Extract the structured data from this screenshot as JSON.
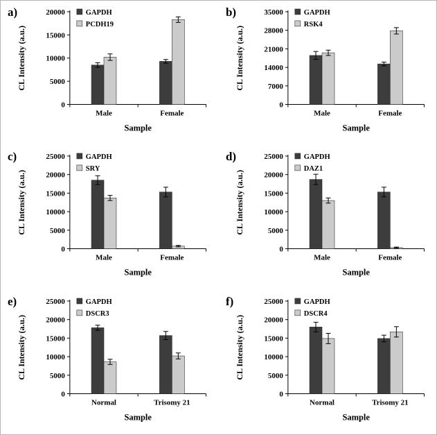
{
  "figure": {
    "background": "#ffffff",
    "border_color": "#b5b5b5",
    "dark_bar_color": "#3d3d3d",
    "light_bar_color": "#cbcbcb",
    "text_color": "#000000"
  },
  "chart_data": [
    {
      "type": "bar",
      "panel": "a)",
      "categories": [
        "Male",
        "Female"
      ],
      "series": [
        {
          "name": "GAPDH",
          "values": [
            8500,
            9300
          ],
          "errors": [
            500,
            400
          ],
          "color": "#3d3d3d"
        },
        {
          "name": "PCDH19",
          "values": [
            10200,
            18300
          ],
          "errors": [
            700,
            600
          ],
          "color": "#cbcbcb"
        }
      ],
      "xlabel": "Sample",
      "ylabel": "CL Intensity (a.u.)",
      "ylim": [
        0,
        20000
      ],
      "yticks": [
        0,
        5000,
        10000,
        15000,
        20000
      ],
      "legend_position": "top-left-inside",
      "grid": false
    },
    {
      "type": "bar",
      "panel": "b)",
      "categories": [
        "Male",
        "Female"
      ],
      "series": [
        {
          "name": "GAPDH",
          "values": [
            18500,
            15300
          ],
          "errors": [
            1500,
            700
          ],
          "color": "#3d3d3d"
        },
        {
          "name": "RSK4",
          "values": [
            19500,
            27800
          ],
          "errors": [
            1000,
            1200
          ],
          "color": "#cbcbcb"
        }
      ],
      "xlabel": "Sample",
      "ylabel": "CL Intensity (a.u.)",
      "ylim": [
        0,
        35000
      ],
      "yticks": [
        0,
        7000,
        14000,
        21000,
        28000,
        35000
      ],
      "legend_position": "top-left-inside",
      "grid": false
    },
    {
      "type": "bar",
      "panel": "c)",
      "categories": [
        "Male",
        "Female"
      ],
      "series": [
        {
          "name": "GAPDH",
          "values": [
            18500,
            15300
          ],
          "errors": [
            1200,
            1300
          ],
          "color": "#3d3d3d"
        },
        {
          "name": "SRY",
          "values": [
            13700,
            700
          ],
          "errors": [
            700,
            200
          ],
          "color": "#cbcbcb"
        }
      ],
      "xlabel": "Sample",
      "ylabel": "CL Intensity (a.u.)",
      "ylim": [
        0,
        25000
      ],
      "yticks": [
        0,
        5000,
        10000,
        15000,
        20000,
        25000
      ],
      "legend_position": "top-left-inside",
      "grid": false
    },
    {
      "type": "bar",
      "panel": "d)",
      "categories": [
        "Male",
        "Female"
      ],
      "series": [
        {
          "name": "GAPDH",
          "values": [
            18700,
            15300
          ],
          "errors": [
            1400,
            1300
          ],
          "color": "#3d3d3d"
        },
        {
          "name": "DAZ1",
          "values": [
            13000,
            300
          ],
          "errors": [
            700,
            150
          ],
          "color": "#cbcbcb"
        }
      ],
      "xlabel": "Sample",
      "ylabel": "CL Intensity (a.u.)",
      "ylim": [
        0,
        25000
      ],
      "yticks": [
        0,
        5000,
        10000,
        15000,
        20000,
        25000
      ],
      "legend_position": "top-left-inside",
      "grid": false
    },
    {
      "type": "bar",
      "panel": "e)",
      "categories": [
        "Normal",
        "Trisomy 21"
      ],
      "series": [
        {
          "name": "GAPDH",
          "values": [
            17800,
            15700
          ],
          "errors": [
            700,
            1100
          ],
          "color": "#3d3d3d"
        },
        {
          "name": "DSCR3",
          "values": [
            8600,
            10200
          ],
          "errors": [
            700,
            800
          ],
          "color": "#cbcbcb"
        }
      ],
      "xlabel": "Sample",
      "ylabel": "CL Intensity (a.u.)",
      "ylim": [
        0,
        25000
      ],
      "yticks": [
        0,
        5000,
        10000,
        15000,
        20000,
        25000
      ],
      "legend_position": "top-left-inside",
      "grid": false
    },
    {
      "type": "bar",
      "panel": "f)",
      "categories": [
        "Normal",
        "Trisomy 21"
      ],
      "series": [
        {
          "name": "GAPDH",
          "values": [
            18000,
            14900
          ],
          "errors": [
            1300,
            900
          ],
          "color": "#3d3d3d"
        },
        {
          "name": "DSCR4",
          "values": [
            14900,
            16700
          ],
          "errors": [
            1400,
            1400
          ],
          "color": "#cbcbcb"
        }
      ],
      "xlabel": "Sample",
      "ylabel": "CL Intensity (a.u.)",
      "ylim": [
        0,
        25000
      ],
      "yticks": [
        0,
        5000,
        10000,
        15000,
        20000,
        25000
      ],
      "legend_position": "top-left-inside",
      "grid": false
    }
  ]
}
